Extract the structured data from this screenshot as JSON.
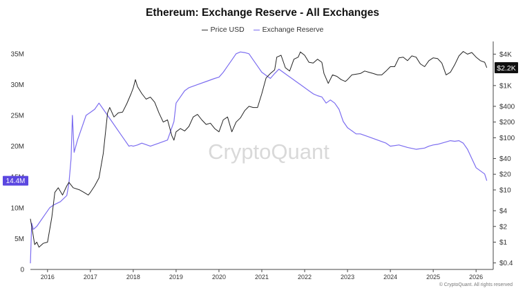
{
  "chart_data": {
    "type": "line",
    "title": "Ethereum: Exchange Reserve - All Exchanges",
    "legend": {
      "placement": "top-center",
      "entries": [
        "Price USD",
        "Exchange Reserve"
      ]
    },
    "x_axis": {
      "type": "time",
      "range": [
        2015.6,
        2026.4
      ],
      "ticks": [
        "2016",
        "2017",
        "2018",
        "2019",
        "2020",
        "2021",
        "2022",
        "2023",
        "2024",
        "2025",
        "2026"
      ]
    },
    "y_left": {
      "series": "Exchange Reserve",
      "range": [
        0,
        37000000
      ],
      "ticks": [
        {
          "value": 0,
          "label": "0"
        },
        {
          "value": 5000000,
          "label": "5M"
        },
        {
          "value": 10000000,
          "label": "10M"
        },
        {
          "value": 15000000,
          "label": "15M"
        },
        {
          "value": 20000000,
          "label": "20M"
        },
        {
          "value": 25000000,
          "label": "25M"
        },
        {
          "value": 30000000,
          "label": "30M"
        },
        {
          "value": 35000000,
          "label": "35M"
        }
      ],
      "current_label": "14.4M",
      "current_value": 14400000
    },
    "y_right": {
      "series": "Price USD",
      "scale": "log",
      "range": [
        0.3,
        7000
      ],
      "ticks": [
        {
          "value": 0.4,
          "label": "$0.4"
        },
        {
          "value": 1,
          "label": "$1"
        },
        {
          "value": 2,
          "label": "$2"
        },
        {
          "value": 4,
          "label": "$4"
        },
        {
          "value": 10,
          "label": "$10"
        },
        {
          "value": 20,
          "label": "$20"
        },
        {
          "value": 40,
          "label": "$40"
        },
        {
          "value": 100,
          "label": "$100"
        },
        {
          "value": 200,
          "label": "$200"
        },
        {
          "value": 400,
          "label": "$400"
        },
        {
          "value": 1000,
          "label": "$1K"
        },
        {
          "value": 4000,
          "label": "$4K"
        }
      ],
      "current_label": "$2.2K",
      "current_value": 2200
    },
    "grid": false,
    "watermark": "CryptoQuant",
    "series": [
      {
        "name": "Exchange Reserve",
        "color": "#7b6cf0",
        "x": [
          2015.6,
          2015.63,
          2015.67,
          2015.75,
          2015.85,
          2015.95,
          2016.05,
          2016.15,
          2016.3,
          2016.45,
          2016.5,
          2016.55,
          2016.58,
          2016.62,
          2016.7,
          2016.8,
          2016.9,
          2017.0,
          2017.1,
          2017.2,
          2017.3,
          2017.4,
          2017.5,
          2017.6,
          2017.7,
          2017.8,
          2017.9,
          2017.95,
          2018.0,
          2018.1,
          2018.2,
          2018.4,
          2018.6,
          2018.8,
          2018.95,
          2019.0,
          2019.1,
          2019.2,
          2019.3,
          2019.5,
          2019.7,
          2019.9,
          2020.0,
          2020.1,
          2020.2,
          2020.3,
          2020.4,
          2020.5,
          2020.6,
          2020.7,
          2020.8,
          2020.9,
          2021.0,
          2021.1,
          2021.2,
          2021.3,
          2021.4,
          2021.5,
          2021.6,
          2021.7,
          2021.8,
          2021.9,
          2022.0,
          2022.1,
          2022.2,
          2022.3,
          2022.4,
          2022.5,
          2022.6,
          2022.7,
          2022.8,
          2022.9,
          2023.0,
          2023.1,
          2023.2,
          2023.3,
          2023.5,
          2023.7,
          2023.9,
          2024.0,
          2024.2,
          2024.4,
          2024.6,
          2024.8,
          2024.9,
          2025.0,
          2025.1,
          2025.2,
          2025.3,
          2025.4,
          2025.5,
          2025.6,
          2025.7,
          2025.8,
          2025.9,
          2026.0,
          2026.1,
          2026.2,
          2026.25
        ],
        "values": [
          1000000,
          7500000,
          6500000,
          7000000,
          8000000,
          9000000,
          10000000,
          10500000,
          11000000,
          12000000,
          14000000,
          18000000,
          25000000,
          19000000,
          21000000,
          23000000,
          25000000,
          25500000,
          26000000,
          27000000,
          26000000,
          25000000,
          24000000,
          23000000,
          22000000,
          21000000,
          20000000,
          20100000,
          20000000,
          20200000,
          20500000,
          20000000,
          20500000,
          21000000,
          24000000,
          27000000,
          28000000,
          29000000,
          29500000,
          30000000,
          30500000,
          31000000,
          31200000,
          32000000,
          33000000,
          34000000,
          35000000,
          35300000,
          35200000,
          35000000,
          34000000,
          33000000,
          32000000,
          31500000,
          31000000,
          31800000,
          32500000,
          32000000,
          31500000,
          31000000,
          30500000,
          30000000,
          29500000,
          29000000,
          28500000,
          28200000,
          28000000,
          27000000,
          27500000,
          27000000,
          26000000,
          24000000,
          23000000,
          22500000,
          22000000,
          22000000,
          21500000,
          21000000,
          20500000,
          20000000,
          20200000,
          19800000,
          19500000,
          19700000,
          20000000,
          20200000,
          20300000,
          20500000,
          20700000,
          20900000,
          20800000,
          20900000,
          20500000,
          19500000,
          18000000,
          16500000,
          16000000,
          15500000,
          14400000
        ]
      },
      {
        "name": "Price USD",
        "color": "#222222",
        "x": [
          2015.6,
          2015.65,
          2015.7,
          2015.75,
          2015.8,
          2015.9,
          2016.0,
          2016.1,
          2016.17,
          2016.25,
          2016.35,
          2016.45,
          2016.5,
          2016.6,
          2016.75,
          2016.85,
          2016.95,
          2017.0,
          2017.1,
          2017.2,
          2017.3,
          2017.4,
          2017.45,
          2017.55,
          2017.65,
          2017.75,
          2017.85,
          2017.95,
          2018.0,
          2018.05,
          2018.1,
          2018.2,
          2018.3,
          2018.4,
          2018.5,
          2018.6,
          2018.7,
          2018.8,
          2018.9,
          2018.95,
          2019.0,
          2019.1,
          2019.2,
          2019.3,
          2019.4,
          2019.5,
          2019.6,
          2019.7,
          2019.8,
          2019.9,
          2020.0,
          2020.1,
          2020.2,
          2020.3,
          2020.4,
          2020.5,
          2020.6,
          2020.7,
          2020.8,
          2020.9,
          2021.0,
          2021.1,
          2021.2,
          2021.3,
          2021.35,
          2021.45,
          2021.55,
          2021.65,
          2021.75,
          2021.85,
          2021.9,
          2022.0,
          2022.1,
          2022.2,
          2022.3,
          2022.4,
          2022.45,
          2022.55,
          2022.65,
          2022.75,
          2022.85,
          2022.95,
          2023.0,
          2023.1,
          2023.2,
          2023.3,
          2023.4,
          2023.5,
          2023.6,
          2023.7,
          2023.8,
          2023.9,
          2024.0,
          2024.1,
          2024.2,
          2024.3,
          2024.4,
          2024.5,
          2024.6,
          2024.7,
          2024.8,
          2024.9,
          2025.0,
          2025.1,
          2025.2,
          2025.3,
          2025.4,
          2025.5,
          2025.6,
          2025.7,
          2025.8,
          2025.9,
          2026.0,
          2026.1,
          2026.2,
          2026.25
        ],
        "values": [
          2.8,
          1.6,
          0.9,
          1.0,
          0.8,
          0.95,
          1.0,
          3,
          9,
          11,
          8,
          12,
          14,
          11,
          10,
          9,
          8,
          9,
          12,
          17,
          50,
          300,
          380,
          250,
          300,
          310,
          450,
          700,
          900,
          1300,
          950,
          700,
          550,
          600,
          480,
          300,
          200,
          220,
          110,
          90,
          130,
          150,
          135,
          165,
          250,
          280,
          220,
          180,
          190,
          150,
          130,
          220,
          250,
          130,
          200,
          240,
          330,
          400,
          380,
          380,
          700,
          1400,
          1700,
          2000,
          3500,
          3800,
          2200,
          1900,
          3200,
          3500,
          4400,
          3800,
          2800,
          2700,
          3200,
          2800,
          1700,
          1100,
          1600,
          1500,
          1300,
          1200,
          1300,
          1600,
          1650,
          1700,
          1900,
          1800,
          1700,
          1600,
          1600,
          1900,
          2300,
          2300,
          3400,
          3500,
          3000,
          3700,
          3500,
          2600,
          2300,
          3000,
          3400,
          3300,
          2700,
          1600,
          1800,
          2500,
          3700,
          4500,
          4000,
          4300,
          3500,
          3000,
          2800,
          2200
        ]
      }
    ]
  },
  "footer": "© CryptoQuant. All rights reserved"
}
